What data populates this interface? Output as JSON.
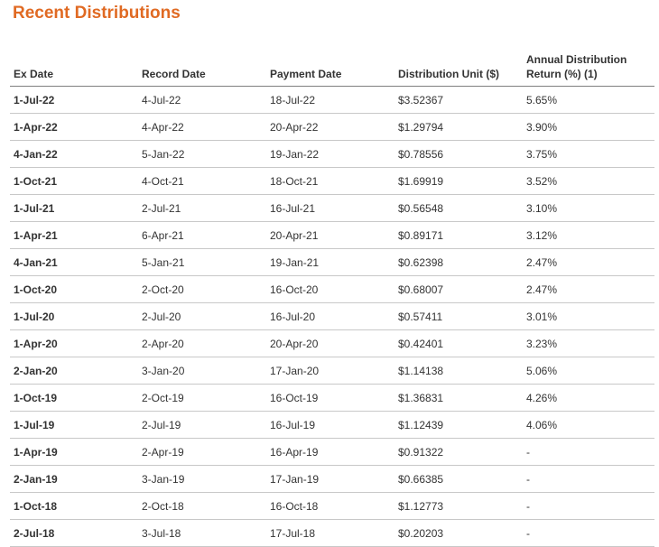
{
  "title": "Recent Distributions",
  "columns": {
    "ex_date": "Ex Date",
    "record_date": "Record Date",
    "payment_date": "Payment Date",
    "distribution_unit": "Distribution Unit ($)",
    "annual_return": "Annual Distribution Return (%) (1)"
  },
  "rows": [
    {
      "ex_date": "1-Jul-22",
      "record_date": "4-Jul-22",
      "payment_date": "18-Jul-22",
      "distribution_unit": "$3.52367",
      "annual_return": "5.65%"
    },
    {
      "ex_date": "1-Apr-22",
      "record_date": "4-Apr-22",
      "payment_date": "20-Apr-22",
      "distribution_unit": "$1.29794",
      "annual_return": "3.90%"
    },
    {
      "ex_date": "4-Jan-22",
      "record_date": "5-Jan-22",
      "payment_date": "19-Jan-22",
      "distribution_unit": "$0.78556",
      "annual_return": "3.75%"
    },
    {
      "ex_date": "1-Oct-21",
      "record_date": "4-Oct-21",
      "payment_date": "18-Oct-21",
      "distribution_unit": "$1.69919",
      "annual_return": "3.52%"
    },
    {
      "ex_date": "1-Jul-21",
      "record_date": "2-Jul-21",
      "payment_date": "16-Jul-21",
      "distribution_unit": "$0.56548",
      "annual_return": "3.10%"
    },
    {
      "ex_date": "1-Apr-21",
      "record_date": "6-Apr-21",
      "payment_date": "20-Apr-21",
      "distribution_unit": "$0.89171",
      "annual_return": "3.12%"
    },
    {
      "ex_date": "4-Jan-21",
      "record_date": "5-Jan-21",
      "payment_date": "19-Jan-21",
      "distribution_unit": "$0.62398",
      "annual_return": "2.47%"
    },
    {
      "ex_date": "1-Oct-20",
      "record_date": "2-Oct-20",
      "payment_date": "16-Oct-20",
      "distribution_unit": "$0.68007",
      "annual_return": "2.47%"
    },
    {
      "ex_date": "1-Jul-20",
      "record_date": "2-Jul-20",
      "payment_date": "16-Jul-20",
      "distribution_unit": "$0.57411",
      "annual_return": "3.01%"
    },
    {
      "ex_date": "1-Apr-20",
      "record_date": "2-Apr-20",
      "payment_date": "20-Apr-20",
      "distribution_unit": "$0.42401",
      "annual_return": "3.23%"
    },
    {
      "ex_date": "2-Jan-20",
      "record_date": "3-Jan-20",
      "payment_date": "17-Jan-20",
      "distribution_unit": "$1.14138",
      "annual_return": "5.06%"
    },
    {
      "ex_date": "1-Oct-19",
      "record_date": "2-Oct-19",
      "payment_date": "16-Oct-19",
      "distribution_unit": "$1.36831",
      "annual_return": "4.26%"
    },
    {
      "ex_date": "1-Jul-19",
      "record_date": "2-Jul-19",
      "payment_date": "16-Jul-19",
      "distribution_unit": "$1.12439",
      "annual_return": "4.06%"
    },
    {
      "ex_date": "1-Apr-19",
      "record_date": "2-Apr-19",
      "payment_date": "16-Apr-19",
      "distribution_unit": "$0.91322",
      "annual_return": "-"
    },
    {
      "ex_date": "2-Jan-19",
      "record_date": "3-Jan-19",
      "payment_date": "17-Jan-19",
      "distribution_unit": "$0.66385",
      "annual_return": "-"
    },
    {
      "ex_date": "1-Oct-18",
      "record_date": "2-Oct-18",
      "payment_date": "16-Oct-18",
      "distribution_unit": "$1.12773",
      "annual_return": "-"
    },
    {
      "ex_date": "2-Jul-18",
      "record_date": "3-Jul-18",
      "payment_date": "17-Jul-18",
      "distribution_unit": "$0.20203",
      "annual_return": "-"
    }
  ],
  "colors": {
    "title": "#e06a23",
    "text": "#333333",
    "header_rule": "#7f7f7f",
    "row_rule": "#c8c8c8"
  }
}
